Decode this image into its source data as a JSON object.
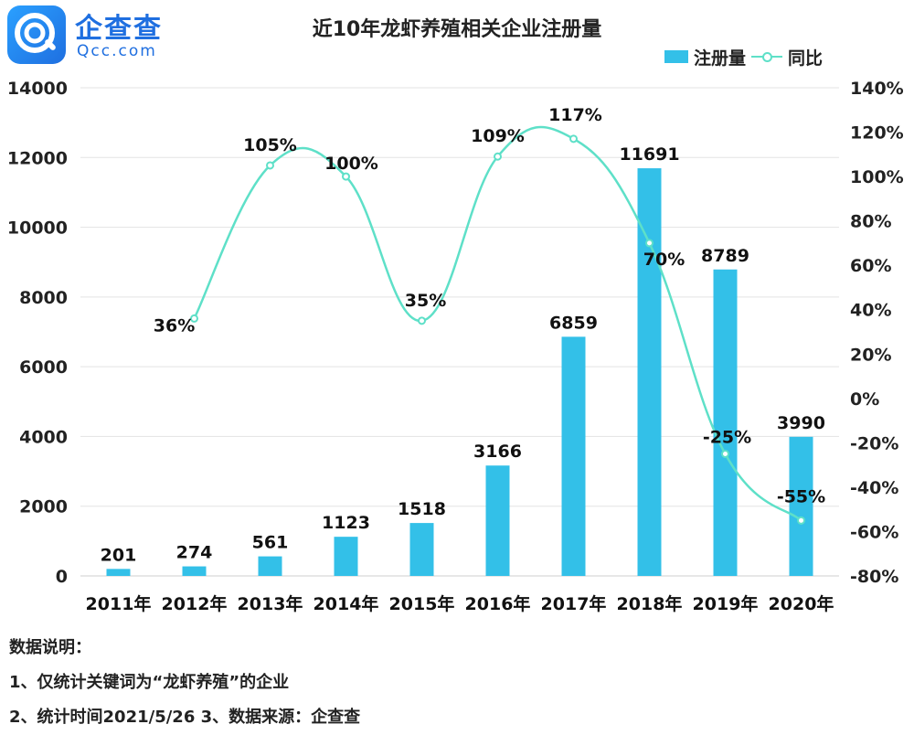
{
  "logo": {
    "name": "企查查",
    "domain": "Qcc.com"
  },
  "chart_data": {
    "type": "bar",
    "title": "近10年龙虾养殖相关企业注册量",
    "categories": [
      "2011年",
      "2012年",
      "2013年",
      "2014年",
      "2015年",
      "2016年",
      "2017年",
      "2018年",
      "2019年",
      "2020年"
    ],
    "series": [
      {
        "name": "注册量",
        "kind": "bar",
        "color": "#33c0e8",
        "values": [
          201,
          274,
          561,
          1123,
          1518,
          3166,
          6859,
          11691,
          8789,
          3990
        ]
      },
      {
        "name": "同比",
        "kind": "line",
        "axis": "right",
        "color": "#5ee0c8",
        "values": [
          null,
          36,
          105,
          100,
          35,
          109,
          117,
          70,
          -25,
          -55
        ],
        "labels": [
          null,
          "36%",
          "105%",
          "100%",
          "35%",
          "109%",
          "117%",
          "70%",
          "-25%",
          "-55%"
        ]
      }
    ],
    "ylim": [
      0,
      14000
    ],
    "yticks": [
      0,
      2000,
      4000,
      6000,
      8000,
      10000,
      12000,
      14000
    ],
    "y2lim": [
      -80,
      140
    ],
    "y2ticks": [
      "-80%",
      "-60%",
      "-40%",
      "-20%",
      "0%",
      "20%",
      "40%",
      "60%",
      "80%",
      "100%",
      "120%",
      "140%"
    ],
    "grid": true,
    "legend_position": "top-right"
  },
  "legend": {
    "bar_label": "注册量",
    "line_label": "同比"
  },
  "notes": {
    "heading": "数据说明：",
    "line1": "1、仅统计关键词为“龙虾养殖”的企业",
    "line2": "2、统计时间2021/5/26    3、数据来源：企查查"
  }
}
